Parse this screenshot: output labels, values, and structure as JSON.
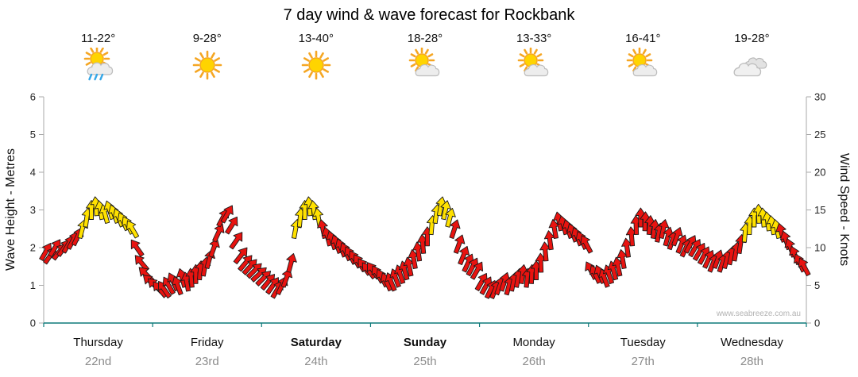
{
  "title": "7 day wind & wave forecast for Rockbank",
  "watermark": "www.seabreeze.com.au",
  "colors": {
    "red": "#e81310",
    "yellow": "#ffe100",
    "arrow_outline": "#1a1a1a",
    "axis": "#a8a8a8",
    "bottom_axis": "#0e7a7a",
    "tick_text": "#222222",
    "date_text": "#8c8c8c"
  },
  "chart_data": {
    "type": "wind-arrows",
    "title": "7 day wind & wave forecast for Rockbank",
    "left_axis": {
      "label": "Wave Height - Metres",
      "min": 0,
      "max": 6,
      "ticks": [
        0,
        1,
        2,
        3,
        4,
        5,
        6
      ]
    },
    "right_axis": {
      "label": "Wind Speed - Knots",
      "min": 0,
      "max": 30,
      "ticks": [
        0,
        5,
        10,
        15,
        20,
        25,
        30
      ]
    },
    "legend": "arrow color: red = moderate wind, yellow = stronger wind; arrow angle = wind direction",
    "days": [
      {
        "name": "Thursday",
        "date": "22nd",
        "bold": false,
        "temp": "11-22°",
        "icon": "sun-shower",
        "speeds_knots": [
          9.5,
          9,
          10,
          9.5,
          10,
          10.5,
          11,
          11.5,
          12.5,
          14,
          15,
          15.5,
          15,
          14.5,
          15,
          14.5,
          14,
          13.5,
          13,
          12.5,
          10,
          8,
          6.5,
          5.5
        ],
        "directions_deg": [
          30,
          35,
          32,
          38,
          35,
          30,
          28,
          25,
          15,
          8,
          0,
          -5,
          -10,
          -15,
          -18,
          -20,
          -22,
          -25,
          -28,
          -30,
          -35,
          -40,
          -45,
          -48
        ],
        "arrow_colors": "rrrrrrrryyyyyyyyyyyyrrrr"
      },
      {
        "name": "Friday",
        "date": "23rd",
        "bold": false,
        "temp": "9-28°",
        "icon": "sunny",
        "speeds_knots": [
          5,
          4.5,
          4.5,
          5,
          5.5,
          5,
          6,
          5.5,
          6,
          6.5,
          7,
          7.5,
          8.5,
          10,
          12,
          14,
          14.5,
          13,
          11,
          9,
          8,
          7.5,
          7,
          6.5
        ],
        "directions_deg": [
          -45,
          -40,
          -35,
          -30,
          -25,
          -20,
          -15,
          -10,
          -5,
          0,
          5,
          10,
          15,
          20,
          25,
          28,
          30,
          32,
          35,
          38,
          40,
          42,
          45,
          48
        ],
        "arrow_colors": "rrrrrrrrrrrrrrrrrrrrrrrr"
      },
      {
        "name": "Saturday",
        "date": "24th",
        "bold": true,
        "temp": "13-40°",
        "icon": "sunny",
        "speeds_knots": [
          6,
          5.5,
          5,
          4.5,
          5,
          6,
          8,
          12.5,
          14,
          15,
          15.5,
          15,
          14,
          12.5,
          11.5,
          11,
          10.5,
          10,
          9.5,
          9,
          8.5,
          8,
          7.5,
          7
        ],
        "directions_deg": [
          45,
          40,
          35,
          30,
          25,
          20,
          15,
          10,
          5,
          0,
          -5,
          -8,
          -10,
          -12,
          -15,
          -18,
          -20,
          -22,
          -25,
          -28,
          -30,
          -32,
          -35,
          -38
        ],
        "arrow_colors": "rrrrrrryyyyyyrrrrrrrrrrr"
      },
      {
        "name": "Sunday",
        "date": "25th",
        "bold": true,
        "temp": "18-28°",
        "icon": "sun-cloud",
        "speeds_knots": [
          7,
          6.5,
          6,
          5.5,
          5.5,
          6,
          6.5,
          7,
          7.5,
          8.5,
          9.5,
          10.5,
          11.5,
          13,
          14.5,
          15.5,
          15,
          14,
          12.5,
          10.5,
          9,
          8,
          7.5,
          7
        ],
        "directions_deg": [
          -35,
          -30,
          -28,
          -25,
          -22,
          -20,
          -18,
          -15,
          -12,
          -10,
          -8,
          -5,
          0,
          5,
          8,
          10,
          12,
          15,
          18,
          20,
          22,
          25,
          28,
          30
        ],
        "arrow_colors": "rrrrrrrrrrrrryyyyyrrrrrr"
      },
      {
        "name": "Monday",
        "date": "26th",
        "bold": false,
        "temp": "13-33°",
        "icon": "sun-cloud",
        "speeds_knots": [
          5.5,
          5,
          4.5,
          4.5,
          5,
          5.5,
          5,
          5.5,
          6,
          6.5,
          6,
          6.5,
          7,
          8,
          9.5,
          11,
          12.5,
          13.5,
          13,
          12.5,
          12,
          11.5,
          11,
          10.5
        ],
        "directions_deg": [
          30,
          28,
          25,
          22,
          20,
          18,
          15,
          12,
          10,
          8,
          5,
          2,
          0,
          -2,
          -5,
          -8,
          -10,
          -12,
          -15,
          -18,
          -20,
          -22,
          -25,
          -28
        ],
        "arrow_colors": "rrrrrrrrrrrrrrrrrrrrrrrr"
      },
      {
        "name": "Tuesday",
        "date": "27th",
        "bold": false,
        "temp": "16-41°",
        "icon": "sun-cloud",
        "speeds_knots": [
          7,
          6.5,
          6.5,
          6,
          6.5,
          7,
          7.5,
          8.5,
          10,
          11.5,
          13,
          14,
          13.5,
          13,
          12.5,
          12,
          12.5,
          11.5,
          11,
          11.5,
          10.5,
          10,
          10.5,
          10
        ],
        "directions_deg": [
          -28,
          -25,
          -22,
          -20,
          -18,
          -15,
          -12,
          -10,
          -8,
          -5,
          -2,
          0,
          2,
          5,
          8,
          10,
          12,
          15,
          18,
          20,
          22,
          25,
          28,
          30
        ],
        "arrow_colors": "rrrrrrrrrrrrrrrrrrrrrrrr"
      },
      {
        "name": "Wednesday",
        "date": "28th",
        "bold": false,
        "temp": "19-28°",
        "icon": "cloudy",
        "speeds_knots": [
          9.5,
          9,
          8.5,
          8,
          8.5,
          8,
          8.5,
          9,
          9.5,
          10.5,
          12,
          13,
          14,
          14.5,
          14,
          13.5,
          13,
          12.5,
          12,
          11,
          10,
          9,
          8,
          7.5
        ],
        "directions_deg": [
          30,
          28,
          25,
          22,
          20,
          18,
          15,
          12,
          10,
          8,
          5,
          2,
          0,
          -2,
          -5,
          -8,
          -10,
          -12,
          -15,
          -18,
          -20,
          -22,
          -25,
          -28
        ],
        "arrow_colors": "rrrrrrrrrryyyyyyyyrrrrrr"
      }
    ]
  }
}
